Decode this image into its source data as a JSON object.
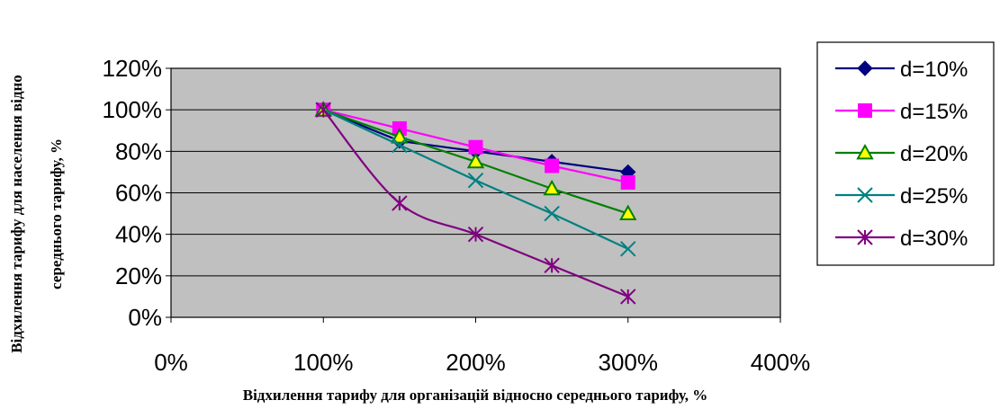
{
  "chart_data": {
    "type": "line",
    "title": "",
    "xlabel": "Відхилення тарифу для організацій відносно середнього тарифу, %",
    "ylabel_line1": "Відхилення тарифу для населення відно",
    "ylabel_line2": "середнього тарифу, %",
    "xlim": [
      0,
      400
    ],
    "ylim": [
      0,
      120
    ],
    "x_ticks": [
      0,
      100,
      200,
      300,
      400
    ],
    "x_tick_labels": [
      "0%",
      "100%",
      "200%",
      "300%",
      "400%"
    ],
    "y_ticks": [
      0,
      20,
      40,
      60,
      80,
      100,
      120
    ],
    "y_tick_labels": [
      "0%",
      "20%",
      "40%",
      "60%",
      "80%",
      "100%",
      "120%"
    ],
    "grid": "horizontal",
    "plot_background": "#c0c0c0",
    "legend_position": "right",
    "x": [
      100,
      150,
      200,
      250,
      300
    ],
    "series": [
      {
        "name": "d=10%",
        "values": [
          100,
          85,
          80,
          75,
          70
        ],
        "color": "#000080",
        "marker": "diamond"
      },
      {
        "name": "d=15%",
        "values": [
          100,
          91,
          82,
          73,
          65
        ],
        "color": "#ff00ff",
        "marker": "square"
      },
      {
        "name": "d=20%",
        "values": [
          100,
          87,
          75,
          62,
          50
        ],
        "color": "#008000",
        "marker": "triangle",
        "marker_fill": "#ffff00"
      },
      {
        "name": "d=25%",
        "values": [
          100,
          83,
          66,
          50,
          33
        ],
        "color": "#008080",
        "marker": "x"
      },
      {
        "name": "d=30%",
        "values": [
          100,
          55,
          40,
          25,
          10
        ],
        "color": "#800080",
        "marker": "star"
      }
    ]
  }
}
